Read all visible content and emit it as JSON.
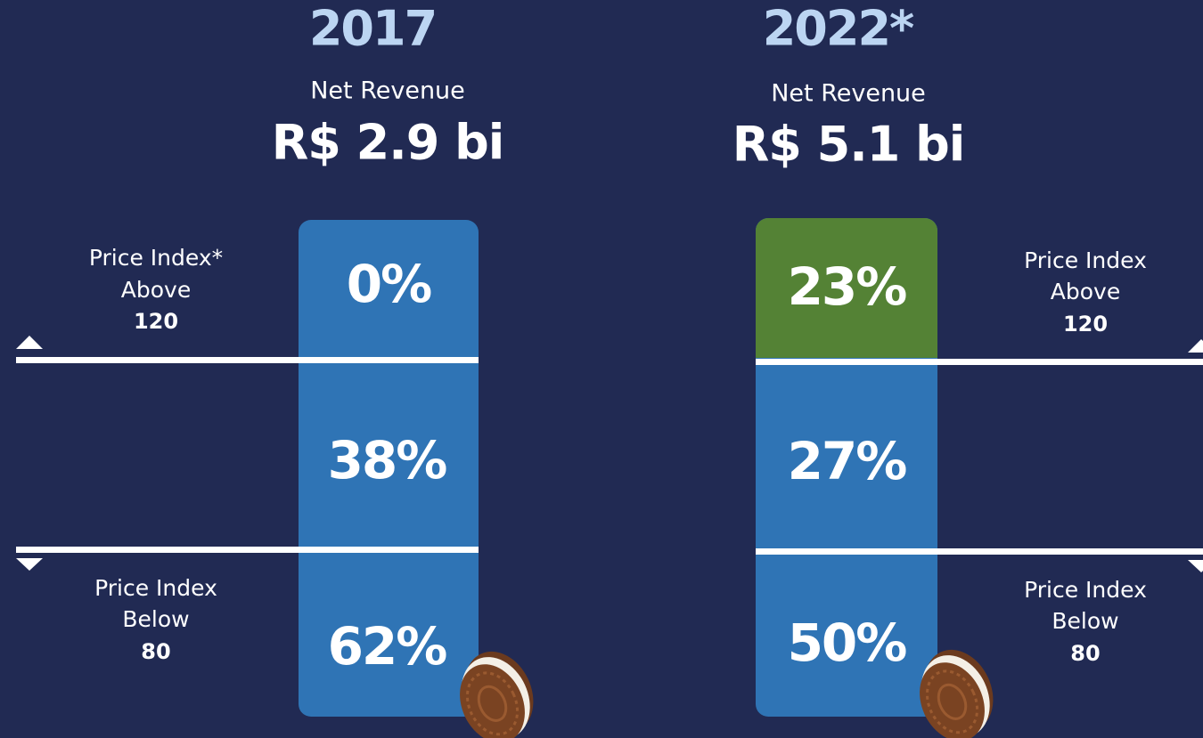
{
  "panels": [
    {
      "year": "2017",
      "revenue_label": "Net Revenue",
      "revenue": "R$ 2.9 bi",
      "segments": [
        "0%",
        "38%",
        "62%"
      ],
      "above": {
        "title": "Price Index*",
        "word": "Above",
        "value": "120"
      },
      "below": {
        "title": "Price Index",
        "word": "Below",
        "value": "80"
      }
    },
    {
      "year": "2022*",
      "revenue_label": "Net Revenue",
      "revenue": "R$ 5.1 bi",
      "segments": [
        "23%",
        "27%",
        "50%"
      ],
      "above": {
        "title": "Price Index",
        "word": "Above",
        "value": "120"
      },
      "below": {
        "title": "Price Index",
        "word": "Below",
        "value": "80"
      }
    }
  ]
}
